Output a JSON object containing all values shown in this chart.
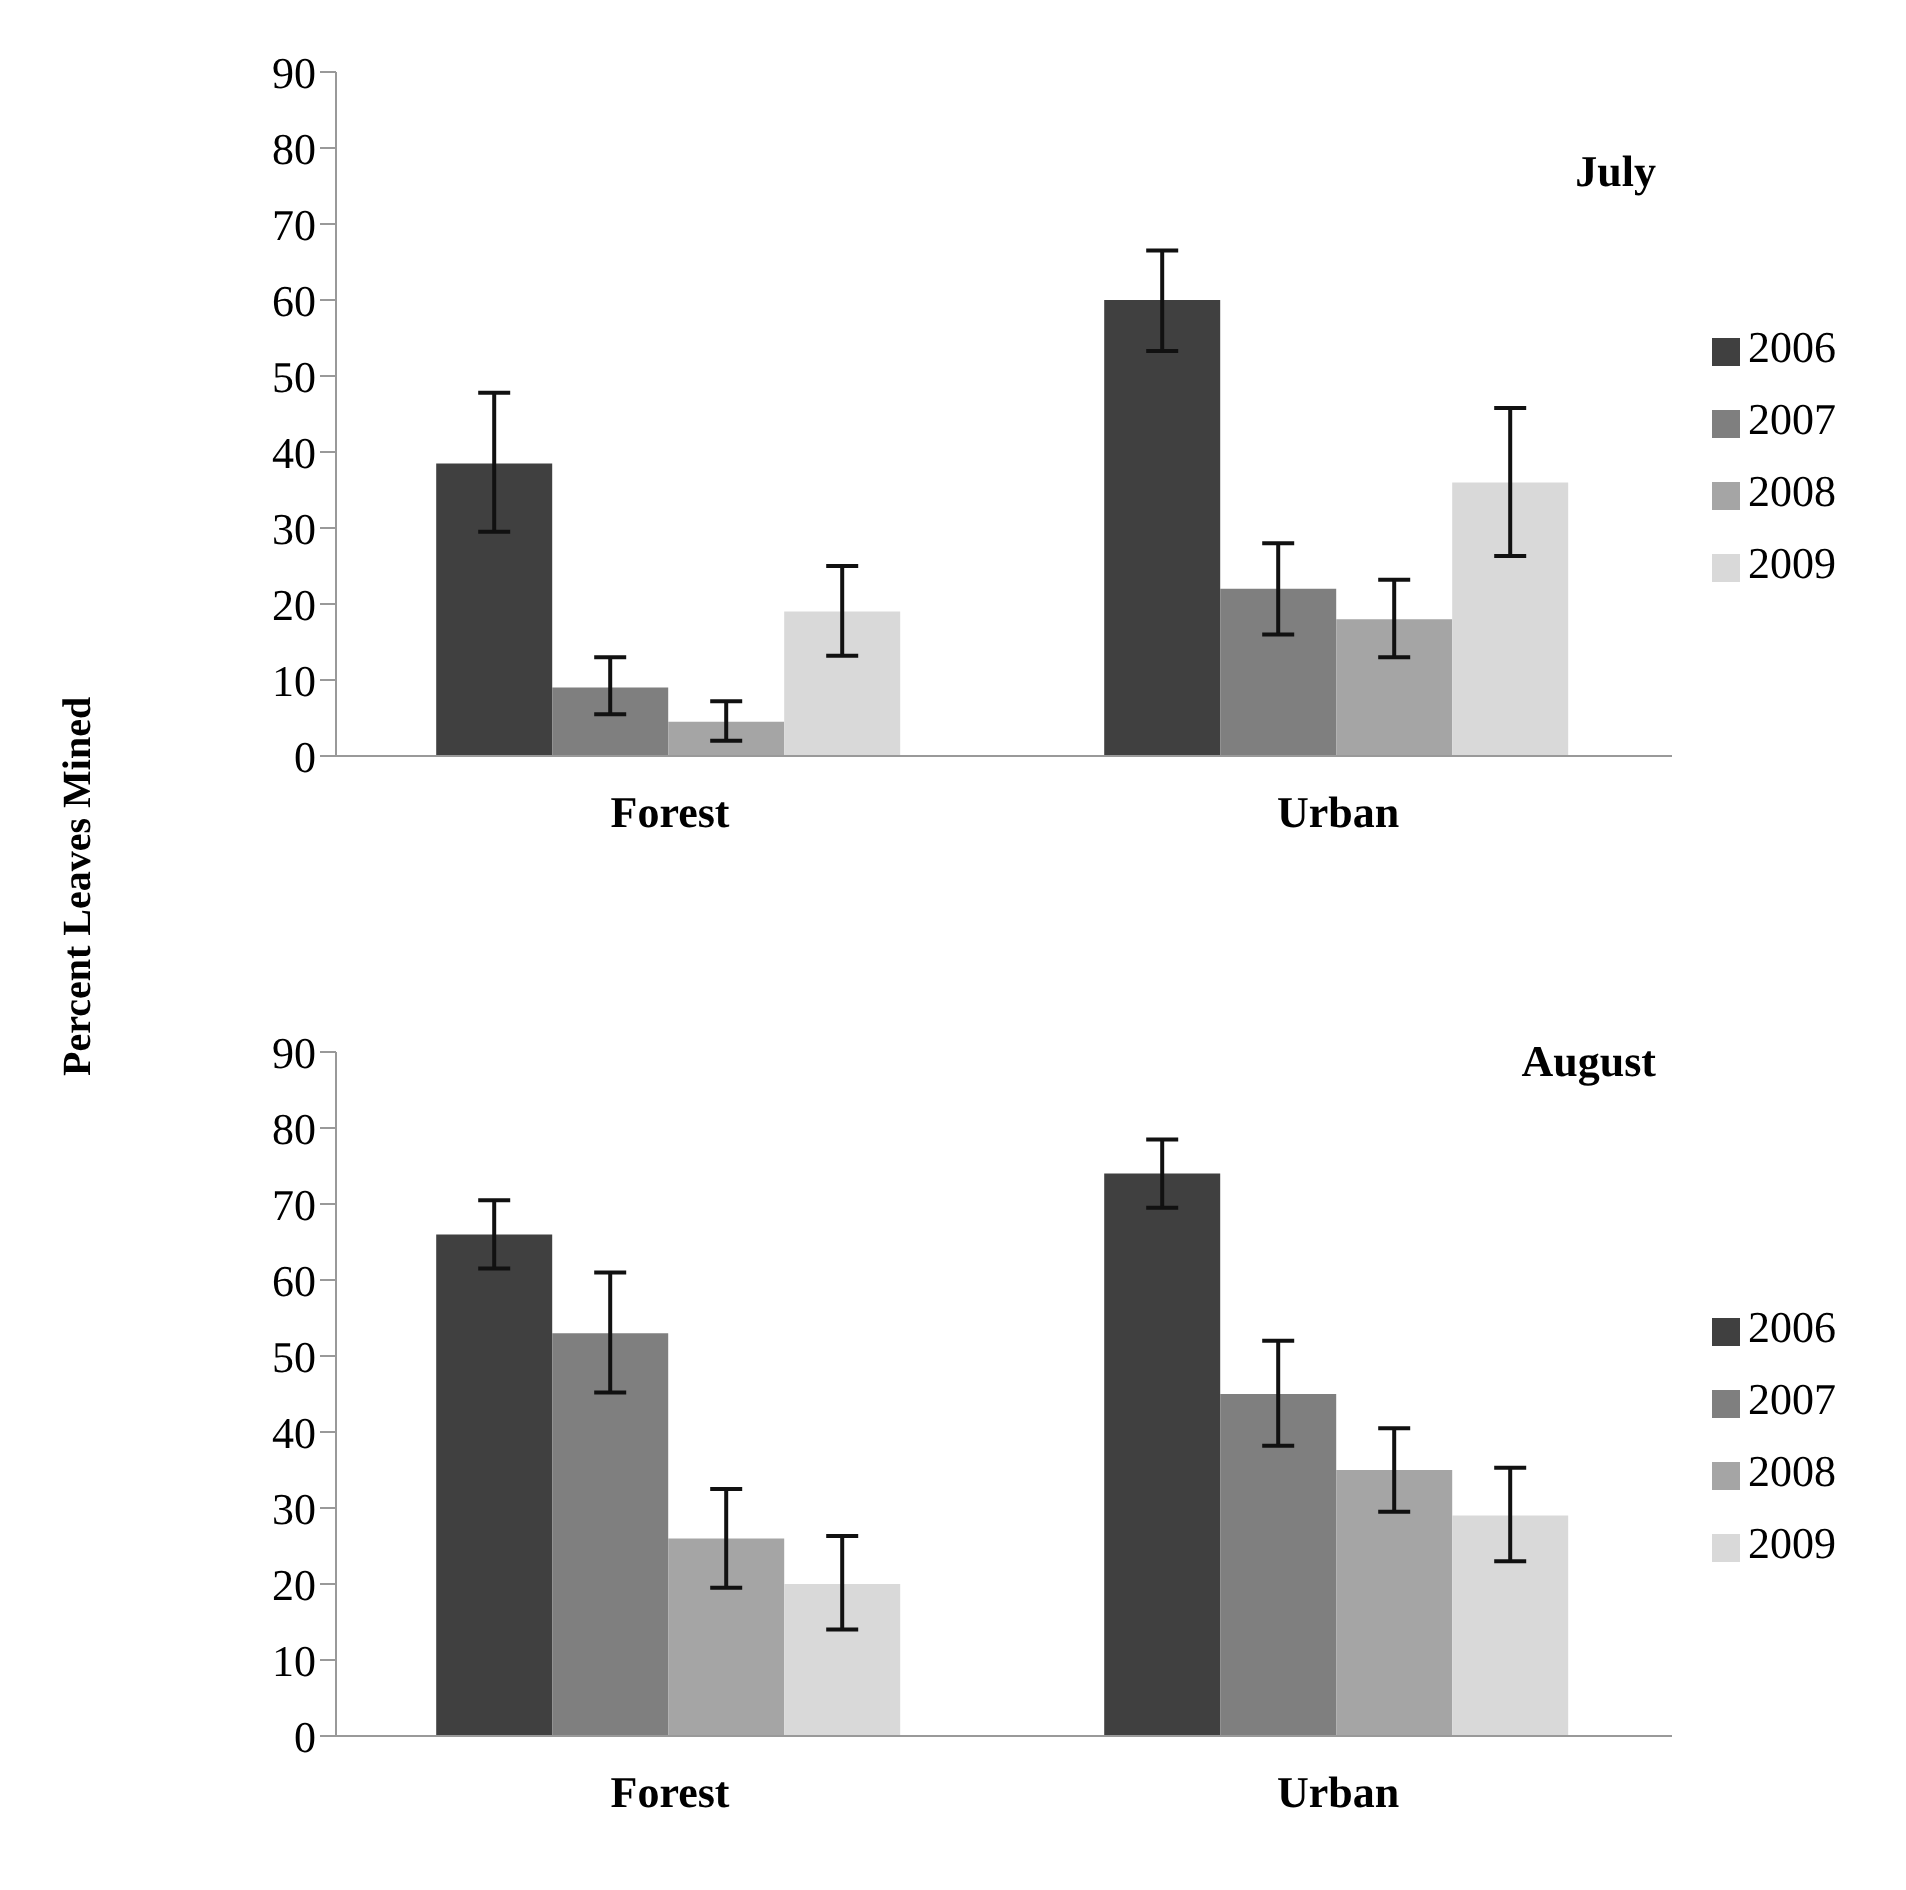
{
  "chart_data": [
    {
      "type": "bar",
      "title": "July",
      "ylabel": "Percent Leaves Mined",
      "categories": [
        "Forest",
        "Urban"
      ],
      "ylim": [
        0,
        90
      ],
      "yticks": [
        0,
        10,
        20,
        30,
        40,
        50,
        60,
        70,
        80,
        90
      ],
      "legend": "right",
      "grid": false,
      "series": [
        {
          "name": "2006",
          "color": "#404040",
          "values": [
            38.5,
            60
          ],
          "errors": [
            [
              29.5,
              47.8
            ],
            [
              53.3,
              66.5
            ]
          ]
        },
        {
          "name": "2007",
          "color": "#7f7f7f",
          "values": [
            9,
            22
          ],
          "errors": [
            [
              5.5,
              13
            ],
            [
              16,
              28
            ]
          ]
        },
        {
          "name": "2008",
          "color": "#a5a5a5",
          "values": [
            4.5,
            18
          ],
          "errors": [
            [
              2,
              7.2
            ],
            [
              13,
              23.2
            ]
          ]
        },
        {
          "name": "2009",
          "color": "#d9d9d9",
          "values": [
            19,
            36
          ],
          "errors": [
            [
              13.2,
              25
            ],
            [
              26.3,
              45.8
            ]
          ]
        }
      ]
    },
    {
      "type": "bar",
      "title": "August",
      "categories": [
        "Forest",
        "Urban"
      ],
      "ylim": [
        0,
        90
      ],
      "yticks": [
        0,
        10,
        20,
        30,
        40,
        50,
        60,
        70,
        80,
        90
      ],
      "legend": "right",
      "grid": false,
      "series": [
        {
          "name": "2006",
          "color": "#404040",
          "values": [
            66,
            74
          ],
          "errors": [
            [
              61.5,
              70.5
            ],
            [
              69.5,
              78.5
            ]
          ]
        },
        {
          "name": "2007",
          "color": "#7f7f7f",
          "values": [
            53,
            45
          ],
          "errors": [
            [
              45.2,
              61
            ],
            [
              38.2,
              52
            ]
          ]
        },
        {
          "name": "2008",
          "color": "#a5a5a5",
          "values": [
            26,
            35
          ],
          "errors": [
            [
              19.5,
              32.5
            ],
            [
              29.5,
              40.5
            ]
          ]
        },
        {
          "name": "2009",
          "color": "#d9d9d9",
          "values": [
            20,
            29
          ],
          "errors": [
            [
              14,
              26.3
            ],
            [
              23,
              35.3
            ]
          ]
        }
      ]
    }
  ]
}
